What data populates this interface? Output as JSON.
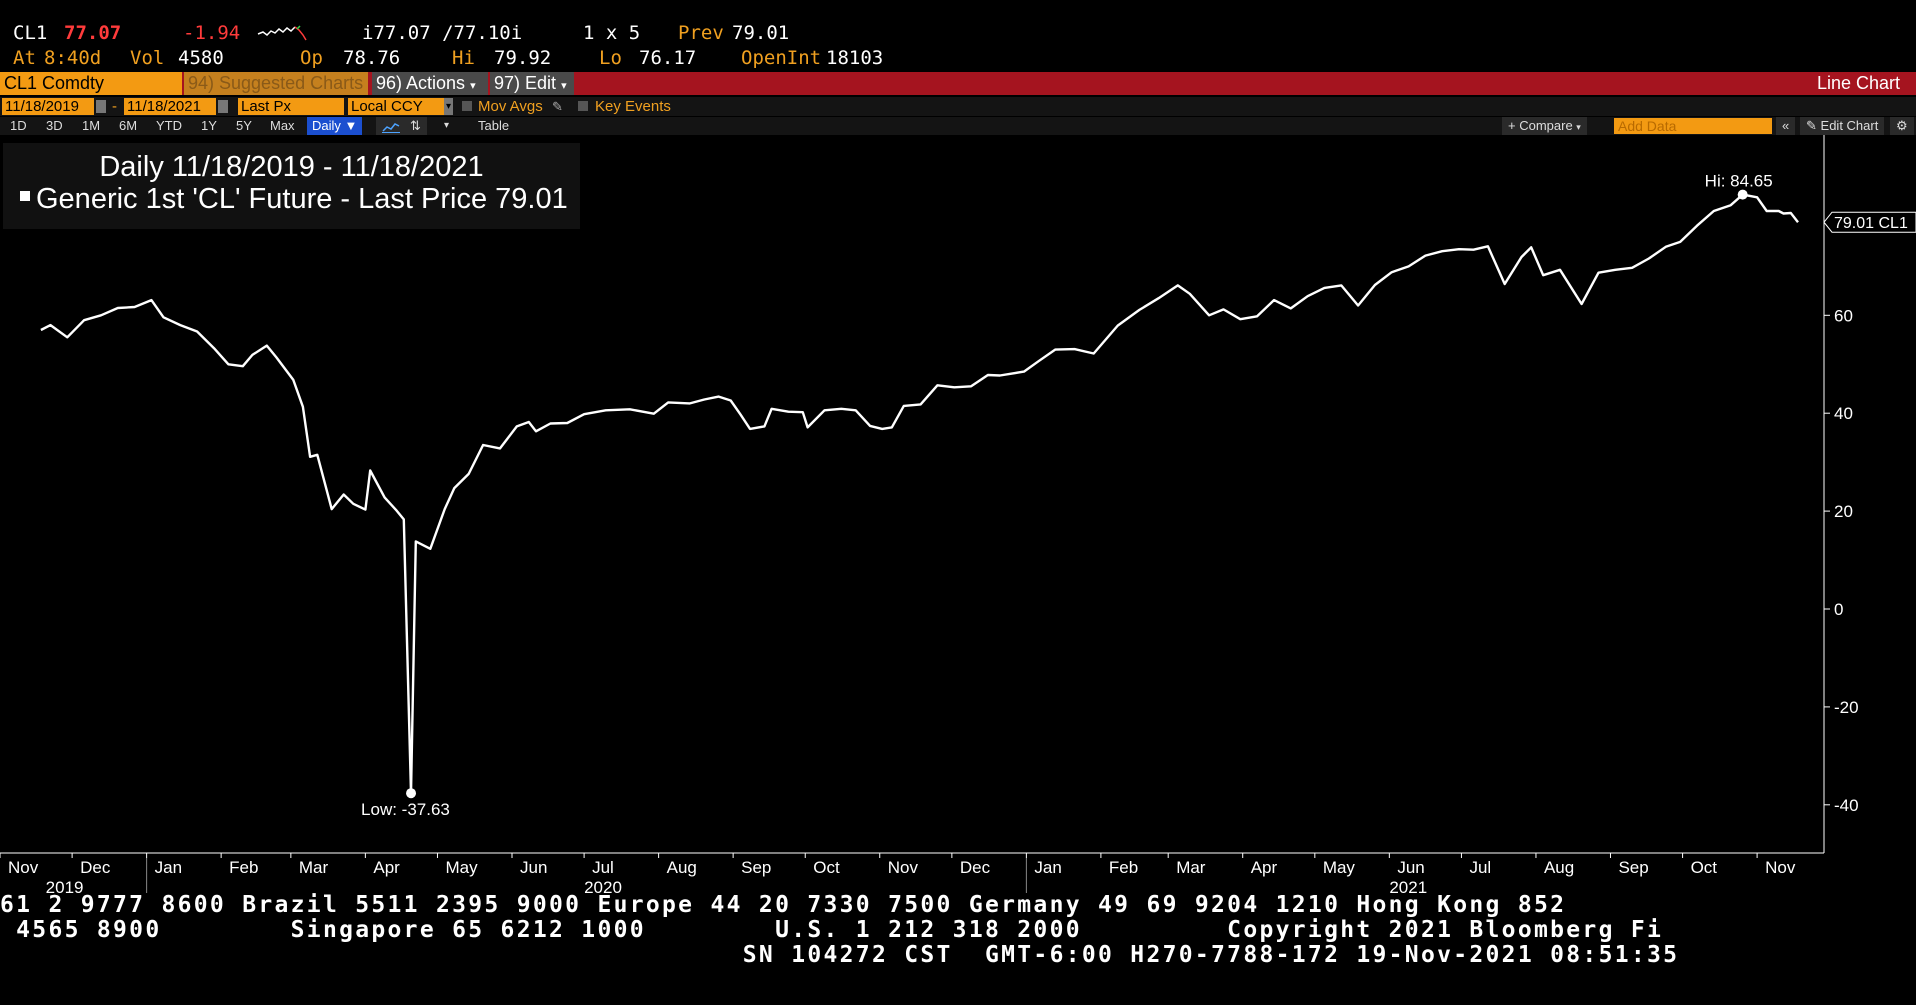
{
  "quote": {
    "ticker": "CL1",
    "last": "77.07",
    "change": "-1.94",
    "bid_ask": "i77.07 /77.10i",
    "size": "1 x 5",
    "prev_label": "Prev",
    "prev": "79.01",
    "at_label": "At",
    "time": "8:40d",
    "vol_label": "Vol",
    "vol": "4580",
    "op_label": "Op",
    "op": "78.76",
    "hi_label": "Hi",
    "hi": "79.92",
    "lo_label": "Lo",
    "lo": "76.17",
    "openint_label": "OpenInt",
    "openint": "18103"
  },
  "toolbar": {
    "security": "CL1 Comdty",
    "suggested": "94) Suggested Charts",
    "actions": "96) Actions",
    "edit": "97) Edit",
    "chart_type": "Line Chart"
  },
  "settings": {
    "start_date": "11/18/2019",
    "end_date": "11/18/2021",
    "field": "Last Px",
    "currency": "Local CCY",
    "mov_avgs": "Mov Avgs",
    "key_events": "Key Events"
  },
  "periods": [
    "1D",
    "3D",
    "1M",
    "6M",
    "YTD",
    "1Y",
    "5Y",
    "Max"
  ],
  "frequency": "Daily",
  "table_label": "Table",
  "compare_label": "+ Compare",
  "add_data_placeholder": "Add Data",
  "edit_chart_label": "Edit Chart",
  "legend": {
    "line1": "Daily 11/18/2019 - 11/18/2021",
    "line2": "Generic 1st 'CL' Future - Last Price 79.01"
  },
  "chart_data": {
    "type": "line",
    "series": [
      {
        "name": "Generic 1st 'CL' Future - Last Price",
        "points": [
          [
            "2019-11-18",
            57.0
          ],
          [
            "2019-11-22",
            58.0
          ],
          [
            "2019-11-29",
            55.5
          ],
          [
            "2019-12-06",
            59.0
          ],
          [
            "2019-12-13",
            60.0
          ],
          [
            "2019-12-20",
            61.5
          ],
          [
            "2019-12-27",
            61.7
          ],
          [
            "2020-01-03",
            63.1
          ],
          [
            "2020-01-08",
            59.6
          ],
          [
            "2020-01-15",
            58.0
          ],
          [
            "2020-01-22",
            56.7
          ],
          [
            "2020-01-29",
            53.3
          ],
          [
            "2020-02-04",
            50.0
          ],
          [
            "2020-02-10",
            49.6
          ],
          [
            "2020-02-14",
            51.9
          ],
          [
            "2020-02-20",
            53.8
          ],
          [
            "2020-02-24",
            51.4
          ],
          [
            "2020-03-02",
            46.8
          ],
          [
            "2020-03-06",
            41.3
          ],
          [
            "2020-03-09",
            31.1
          ],
          [
            "2020-03-12",
            31.5
          ],
          [
            "2020-03-18",
            20.4
          ],
          [
            "2020-03-23",
            23.4
          ],
          [
            "2020-03-27",
            21.5
          ],
          [
            "2020-04-01",
            20.3
          ],
          [
            "2020-04-03",
            28.3
          ],
          [
            "2020-04-09",
            22.8
          ],
          [
            "2020-04-14",
            20.1
          ],
          [
            "2020-04-17",
            18.3
          ],
          [
            "2020-04-20",
            -37.63
          ],
          [
            "2020-04-22",
            13.8
          ],
          [
            "2020-04-28",
            12.3
          ],
          [
            "2020-05-04",
            20.4
          ],
          [
            "2020-05-08",
            24.7
          ],
          [
            "2020-05-14",
            27.6
          ],
          [
            "2020-05-20",
            33.5
          ],
          [
            "2020-05-27",
            32.8
          ],
          [
            "2020-06-03",
            37.3
          ],
          [
            "2020-06-08",
            38.2
          ],
          [
            "2020-06-11",
            36.3
          ],
          [
            "2020-06-17",
            37.9
          ],
          [
            "2020-06-24",
            38.0
          ],
          [
            "2020-07-01",
            39.8
          ],
          [
            "2020-07-10",
            40.6
          ],
          [
            "2020-07-20",
            40.8
          ],
          [
            "2020-07-30",
            39.9
          ],
          [
            "2020-08-05",
            42.2
          ],
          [
            "2020-08-14",
            42.0
          ],
          [
            "2020-08-20",
            42.8
          ],
          [
            "2020-08-26",
            43.4
          ],
          [
            "2020-08-31",
            42.6
          ],
          [
            "2020-09-04",
            39.8
          ],
          [
            "2020-09-08",
            36.8
          ],
          [
            "2020-09-14",
            37.3
          ],
          [
            "2020-09-17",
            40.9
          ],
          [
            "2020-09-24",
            40.3
          ],
          [
            "2020-09-30",
            40.2
          ],
          [
            "2020-10-02",
            37.1
          ],
          [
            "2020-10-09",
            40.6
          ],
          [
            "2020-10-16",
            40.9
          ],
          [
            "2020-10-22",
            40.6
          ],
          [
            "2020-10-28",
            37.4
          ],
          [
            "2020-11-02",
            36.8
          ],
          [
            "2020-11-06",
            37.1
          ],
          [
            "2020-11-11",
            41.5
          ],
          [
            "2020-11-18",
            41.8
          ],
          [
            "2020-11-25",
            45.7
          ],
          [
            "2020-12-02",
            45.3
          ],
          [
            "2020-12-09",
            45.5
          ],
          [
            "2020-12-16",
            47.8
          ],
          [
            "2020-12-21",
            47.7
          ],
          [
            "2020-12-31",
            48.5
          ],
          [
            "2021-01-06",
            50.6
          ],
          [
            "2021-01-13",
            53.0
          ],
          [
            "2021-01-21",
            53.1
          ],
          [
            "2021-01-29",
            52.2
          ],
          [
            "2021-02-08",
            57.9
          ],
          [
            "2021-02-17",
            61.1
          ],
          [
            "2021-02-25",
            63.5
          ],
          [
            "2021-03-05",
            66.1
          ],
          [
            "2021-03-10",
            64.4
          ],
          [
            "2021-03-18",
            60.0
          ],
          [
            "2021-03-24",
            61.2
          ],
          [
            "2021-03-31",
            59.2
          ],
          [
            "2021-04-07",
            59.8
          ],
          [
            "2021-04-14",
            63.1
          ],
          [
            "2021-04-21",
            61.4
          ],
          [
            "2021-04-28",
            63.9
          ],
          [
            "2021-05-05",
            65.6
          ],
          [
            "2021-05-12",
            66.1
          ],
          [
            "2021-05-19",
            62.0
          ],
          [
            "2021-05-26",
            66.2
          ],
          [
            "2021-06-02",
            68.8
          ],
          [
            "2021-06-09",
            70.0
          ],
          [
            "2021-06-16",
            72.2
          ],
          [
            "2021-06-23",
            73.1
          ],
          [
            "2021-06-30",
            73.5
          ],
          [
            "2021-07-06",
            73.4
          ],
          [
            "2021-07-12",
            74.1
          ],
          [
            "2021-07-19",
            66.4
          ],
          [
            "2021-07-26",
            71.9
          ],
          [
            "2021-07-30",
            73.9
          ],
          [
            "2021-08-04",
            68.2
          ],
          [
            "2021-08-11",
            69.3
          ],
          [
            "2021-08-20",
            62.3
          ],
          [
            "2021-08-27",
            68.7
          ],
          [
            "2021-09-03",
            69.3
          ],
          [
            "2021-09-10",
            69.7
          ],
          [
            "2021-09-17",
            71.6
          ],
          [
            "2021-09-24",
            74.0
          ],
          [
            "2021-09-30",
            75.0
          ],
          [
            "2021-10-07",
            78.3
          ],
          [
            "2021-10-14",
            81.3
          ],
          [
            "2021-10-21",
            82.5
          ],
          [
            "2021-10-26",
            84.65
          ],
          [
            "2021-11-01",
            84.1
          ],
          [
            "2021-11-05",
            81.3
          ],
          [
            "2021-11-10",
            81.3
          ],
          [
            "2021-11-12",
            80.8
          ],
          [
            "2021-11-15",
            80.9
          ],
          [
            "2021-11-18",
            79.01
          ]
        ]
      }
    ],
    "ylim": [
      -50,
      100
    ],
    "yticks": [
      -40,
      -20,
      0,
      20,
      40,
      60
    ],
    "xrange": [
      "2019-11-01",
      "2021-11-28"
    ],
    "month_ticks": [
      {
        "date": "2019-11-01",
        "label": "Nov"
      },
      {
        "date": "2019-12-01",
        "label": "Dec"
      },
      {
        "date": "2020-01-01",
        "label": "Jan"
      },
      {
        "date": "2020-02-01",
        "label": "Feb"
      },
      {
        "date": "2020-03-01",
        "label": "Mar"
      },
      {
        "date": "2020-04-01",
        "label": "Apr"
      },
      {
        "date": "2020-05-01",
        "label": "May"
      },
      {
        "date": "2020-06-01",
        "label": "Jun"
      },
      {
        "date": "2020-07-01",
        "label": "Jul"
      },
      {
        "date": "2020-08-01",
        "label": "Aug"
      },
      {
        "date": "2020-09-01",
        "label": "Sep"
      },
      {
        "date": "2020-10-01",
        "label": "Oct"
      },
      {
        "date": "2020-11-01",
        "label": "Nov"
      },
      {
        "date": "2020-12-01",
        "label": "Dec"
      },
      {
        "date": "2021-01-01",
        "label": "Jan"
      },
      {
        "date": "2021-02-01",
        "label": "Feb"
      },
      {
        "date": "2021-03-01",
        "label": "Mar"
      },
      {
        "date": "2021-04-01",
        "label": "Apr"
      },
      {
        "date": "2021-05-01",
        "label": "May"
      },
      {
        "date": "2021-06-01",
        "label": "Jun"
      },
      {
        "date": "2021-07-01",
        "label": "Jul"
      },
      {
        "date": "2021-08-01",
        "label": "Aug"
      },
      {
        "date": "2021-09-01",
        "label": "Sep"
      },
      {
        "date": "2021-10-01",
        "label": "Oct"
      },
      {
        "date": "2021-11-01",
        "label": "Nov"
      }
    ],
    "year_ticks": [
      {
        "date": "2019-11-20",
        "label": "2019"
      },
      {
        "date": "2020-07-01",
        "label": "2020"
      },
      {
        "date": "2021-06-01",
        "label": "2021"
      }
    ],
    "year_dividers": [
      "2020-01-01",
      "2021-01-01"
    ],
    "hi_label": "Hi: 84.65",
    "hi_date": "2021-10-26",
    "hi_value": 84.65,
    "low_label": "Low: -37.63",
    "low_date": "2020-04-20",
    "low_value": -37.63,
    "last_tag": "79.01 CL1",
    "last_value": 79.01,
    "grid": false
  },
  "footer": {
    "line1": "61 2 9777 8600 Brazil 5511 2395 9000 Europe 44 20 7330 7500 Germany 49 69 9204 1210 Hong Kong 852",
    "line2": " 4565 8900        Singapore 65 6212 1000        U.S. 1 212 318 2000         Copyright 2021 Bloomberg Fi",
    "line3": "                                              SN 104272 CST  GMT-6:00 H270-7788-172 19-Nov-2021 08:51:35"
  }
}
